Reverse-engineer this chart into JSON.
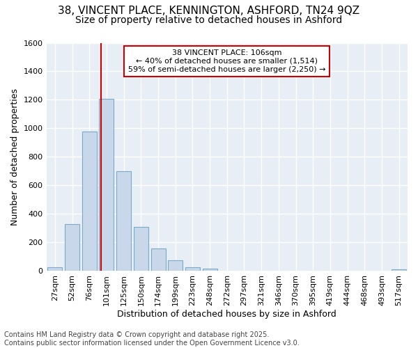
{
  "title_line1": "38, VINCENT PLACE, KENNINGTON, ASHFORD, TN24 9QZ",
  "title_line2": "Size of property relative to detached houses in Ashford",
  "xlabel": "Distribution of detached houses by size in Ashford",
  "ylabel": "Number of detached properties",
  "categories": [
    "27sqm",
    "52sqm",
    "76sqm",
    "101sqm",
    "125sqm",
    "150sqm",
    "174sqm",
    "199sqm",
    "223sqm",
    "248sqm",
    "272sqm",
    "297sqm",
    "321sqm",
    "346sqm",
    "370sqm",
    "395sqm",
    "419sqm",
    "444sqm",
    "468sqm",
    "493sqm",
    "517sqm"
  ],
  "values": [
    25,
    325,
    975,
    1205,
    700,
    310,
    155,
    75,
    25,
    15,
    0,
    0,
    0,
    0,
    0,
    0,
    0,
    0,
    0,
    0,
    10
  ],
  "bar_color": "#c8d8ea",
  "bar_edge_color": "#7aaac8",
  "vline_color": "#cc0000",
  "annotation_text": "38 VINCENT PLACE: 106sqm\n← 40% of detached houses are smaller (1,514)\n59% of semi-detached houses are larger (2,250) →",
  "annotation_box_facecolor": "white",
  "annotation_box_edgecolor": "#cc0000",
  "ylim": [
    0,
    1600
  ],
  "yticks": [
    0,
    200,
    400,
    600,
    800,
    1000,
    1200,
    1400,
    1600
  ],
  "bg_color": "#ffffff",
  "plot_bg_color": "#e8eef5",
  "grid_color": "#ffffff",
  "title_fontsize": 11,
  "subtitle_fontsize": 10,
  "axis_label_fontsize": 9,
  "tick_fontsize": 8,
  "annotation_fontsize": 8,
  "footer_fontsize": 7,
  "footer_line1": "Contains HM Land Registry data © Crown copyright and database right 2025.",
  "footer_line2": "Contains public sector information licensed under the Open Government Licence v3.0.",
  "vline_bar_index": 3
}
